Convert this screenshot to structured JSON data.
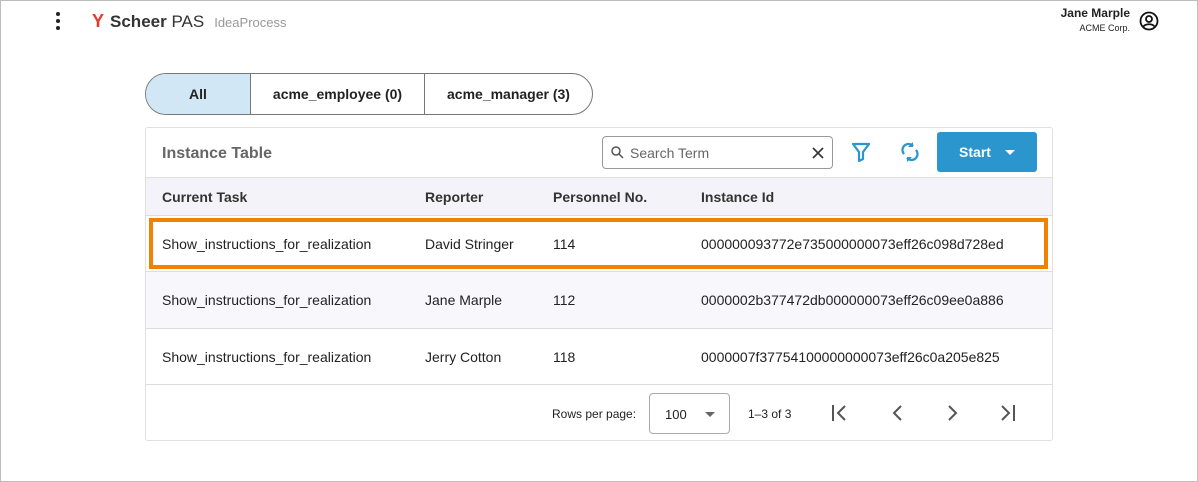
{
  "header": {
    "brand_bold": "Scheer",
    "brand_rest": "PAS",
    "app": "IdeaProcess",
    "user_name": "Jane Marple",
    "user_company": "ACME Corp."
  },
  "tabs": [
    {
      "label": "All",
      "active": true
    },
    {
      "label": "acme_employee (0)"
    },
    {
      "label": "acme_manager (3)"
    }
  ],
  "table": {
    "title": "Instance Table",
    "search_placeholder": "Search Term",
    "start_label": "Start",
    "accent": "#2a96cd",
    "highlight": "#f08200",
    "columns": [
      "Current Task",
      "Reporter",
      "Personnel No.",
      "Instance Id"
    ],
    "rows": [
      [
        "Show_instructions_for_realization",
        "David Stringer",
        "114",
        "000000093772e735000000073eff26c098d728ed"
      ],
      [
        "Show_instructions_for_realization",
        "Jane Marple",
        "112",
        "0000002b377472db000000073eff26c09ee0a886"
      ],
      [
        "Show_instructions_for_realization",
        "Jerry Cotton",
        "118",
        "0000007f37754100000000073eff26c0a205e825"
      ]
    ],
    "footer": {
      "rows_per_page_label": "Rows per page:",
      "rows_per_page": "100",
      "range": "1–3 of 3"
    }
  }
}
